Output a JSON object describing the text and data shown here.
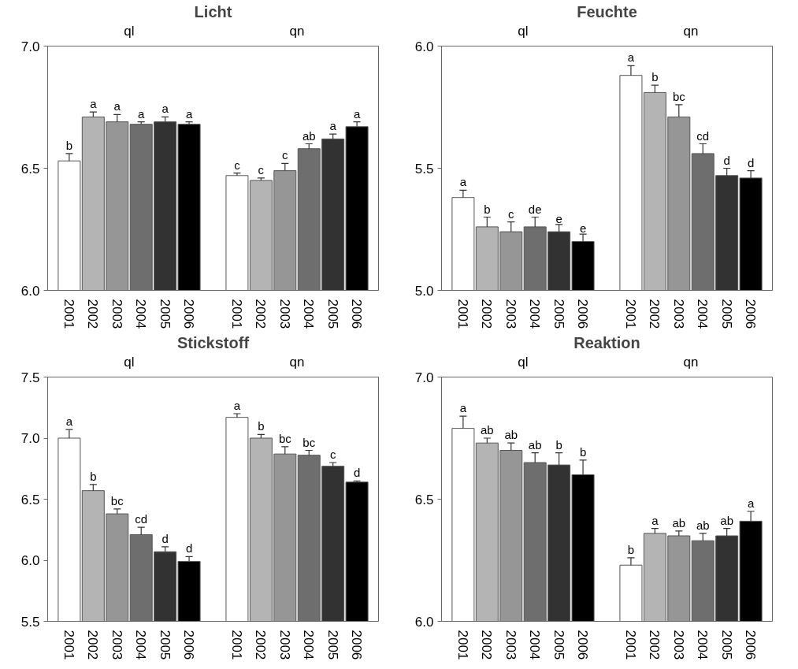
{
  "chart_data": [
    {
      "type": "bar",
      "title": "Licht",
      "annotations": [
        "ql",
        "qn"
      ],
      "categories": [
        "2001",
        "2002",
        "2003",
        "2004",
        "2005",
        "2006",
        null,
        "2001",
        "2002",
        "2003",
        "2004",
        "2005",
        "2006"
      ],
      "values": [
        6.53,
        6.71,
        6.69,
        6.68,
        6.69,
        6.68,
        null,
        6.47,
        6.45,
        6.49,
        6.58,
        6.62,
        6.67
      ],
      "errors": [
        [
          6.53,
          6.56
        ],
        [
          6.71,
          6.73
        ],
        [
          6.69,
          6.72
        ],
        [
          6.68,
          6.69
        ],
        [
          6.69,
          6.71
        ],
        [
          6.68,
          6.69
        ],
        null,
        [
          6.47,
          6.48
        ],
        [
          6.45,
          6.46
        ],
        [
          6.49,
          6.52
        ],
        [
          6.58,
          6.6
        ],
        [
          6.62,
          6.64
        ],
        [
          6.67,
          6.69
        ]
      ],
      "value_labels": [
        "b",
        "a",
        "a",
        "a",
        "a",
        "a",
        null,
        "c",
        "c",
        "c",
        "ab",
        "a",
        "a"
      ],
      "colors": [
        "#ffffff",
        "#b4b4b4",
        "#969696",
        "#6e6e6e",
        "#323232",
        "#000000",
        "#ffffff",
        "#ffffff",
        "#b4b4b4",
        "#969696",
        "#6e6e6e",
        "#323232",
        "#000000"
      ],
      "ylim": [
        6.0,
        7.0
      ],
      "yticks": [
        {
          "value": 6.0,
          "label": "6.0"
        },
        {
          "value": 6.5,
          "label": "6.5"
        },
        {
          "value": 7.0,
          "label": "7.0"
        }
      ]
    },
    {
      "type": "bar",
      "title": "Feuchte",
      "annotations": [
        "ql",
        "qn"
      ],
      "categories": [
        "2001",
        "2002",
        "2003",
        "2004",
        "2005",
        "2006",
        null,
        "2001",
        "2002",
        "2003",
        "2004",
        "2005",
        "2006"
      ],
      "values": [
        5.38,
        5.26,
        5.24,
        5.26,
        5.24,
        5.2,
        null,
        5.88,
        5.81,
        5.71,
        5.56,
        5.47,
        5.46
      ],
      "errors": [
        [
          5.38,
          5.41
        ],
        [
          5.26,
          5.3
        ],
        [
          5.24,
          5.28
        ],
        [
          5.26,
          5.3
        ],
        [
          5.24,
          5.27
        ],
        [
          5.2,
          5.23
        ],
        null,
        [
          5.88,
          5.92
        ],
        [
          5.81,
          5.84
        ],
        [
          5.71,
          5.76
        ],
        [
          5.56,
          5.6
        ],
        [
          5.47,
          5.5
        ],
        [
          5.46,
          5.49
        ]
      ],
      "value_labels": [
        "a",
        "b",
        "c",
        "de",
        "e",
        "e",
        null,
        "a",
        "b",
        "bc",
        "cd",
        "d",
        "d"
      ],
      "colors": [
        "#ffffff",
        "#b4b4b4",
        "#969696",
        "#6e6e6e",
        "#323232",
        "#000000",
        "#ffffff",
        "#ffffff",
        "#b4b4b4",
        "#969696",
        "#6e6e6e",
        "#323232",
        "#000000"
      ],
      "ylim": [
        5.0,
        6.0
      ],
      "yticks": [
        {
          "value": 5.0,
          "label": "5.0"
        },
        {
          "value": 5.5,
          "label": "5.5"
        },
        {
          "value": 6.0,
          "label": "6.0"
        }
      ]
    },
    {
      "type": "bar",
      "title": "Stickstoff",
      "annotations": [
        "ql",
        "qn"
      ],
      "categories": [
        "2001",
        "2002",
        "2003",
        "2004",
        "2005",
        "2006",
        null,
        "2001",
        "2002",
        "2003",
        "2004",
        "2005",
        "2006"
      ],
      "values": [
        7.0,
        6.57,
        6.38,
        6.21,
        6.07,
        5.99,
        null,
        7.17,
        7.0,
        6.87,
        6.86,
        6.77,
        6.64
      ],
      "errors": [
        [
          7.0,
          7.07
        ],
        [
          6.57,
          6.62
        ],
        [
          6.38,
          6.42
        ],
        [
          6.21,
          6.27
        ],
        [
          6.07,
          6.11
        ],
        [
          5.99,
          6.03
        ],
        null,
        [
          7.17,
          7.2
        ],
        [
          7.0,
          7.03
        ],
        [
          6.87,
          6.93
        ],
        [
          6.86,
          6.9
        ],
        [
          6.77,
          6.8
        ],
        [
          6.64,
          6.65
        ]
      ],
      "value_labels": [
        "a",
        "b",
        "bc",
        "cd",
        "d",
        "d",
        null,
        "a",
        "b",
        "bc",
        "bc",
        "c",
        "d"
      ],
      "colors": [
        "#ffffff",
        "#b4b4b4",
        "#969696",
        "#6e6e6e",
        "#323232",
        "#000000",
        "#ffffff",
        "#ffffff",
        "#b4b4b4",
        "#969696",
        "#6e6e6e",
        "#323232",
        "#000000"
      ],
      "ylim": [
        5.5,
        7.5
      ],
      "yticks": [
        {
          "value": 5.5,
          "label": "5.5"
        },
        {
          "value": 6.0,
          "label": "6.0"
        },
        {
          "value": 6.5,
          "label": "6.5"
        },
        {
          "value": 7.0,
          "label": "7.0"
        },
        {
          "value": 7.5,
          "label": "7.5"
        }
      ]
    },
    {
      "type": "bar",
      "title": "Reaktion",
      "annotations": [
        "ql",
        "qn"
      ],
      "categories": [
        "2001",
        "2002",
        "2003",
        "2004",
        "2005",
        "2006",
        null,
        "2001",
        "2002",
        "2003",
        "2004",
        "2005",
        "2006"
      ],
      "values": [
        6.79,
        6.73,
        6.7,
        6.65,
        6.64,
        6.6,
        null,
        6.23,
        6.36,
        6.35,
        6.33,
        6.35,
        6.41
      ],
      "errors": [
        [
          6.79,
          6.84
        ],
        [
          6.73,
          6.75
        ],
        [
          6.7,
          6.73
        ],
        [
          6.65,
          6.69
        ],
        [
          6.64,
          6.69
        ],
        [
          6.6,
          6.66
        ],
        null,
        [
          6.23,
          6.26
        ],
        [
          6.36,
          6.38
        ],
        [
          6.35,
          6.37
        ],
        [
          6.33,
          6.36
        ],
        [
          6.35,
          6.38
        ],
        [
          6.41,
          6.45
        ]
      ],
      "value_labels": [
        "a",
        "ab",
        "ab",
        "ab",
        "b",
        "b",
        null,
        "b",
        "a",
        "ab",
        "ab",
        "ab",
        "a"
      ],
      "colors": [
        "#ffffff",
        "#b4b4b4",
        "#969696",
        "#6e6e6e",
        "#323232",
        "#000000",
        "#ffffff",
        "#ffffff",
        "#b4b4b4",
        "#969696",
        "#6e6e6e",
        "#323232",
        "#000000"
      ],
      "ylim": [
        6.0,
        7.0
      ],
      "yticks": [
        {
          "value": 6.0,
          "label": "6.0"
        },
        {
          "value": 6.5,
          "label": "6.5"
        },
        {
          "value": 7.0,
          "label": "7.0"
        }
      ]
    }
  ]
}
